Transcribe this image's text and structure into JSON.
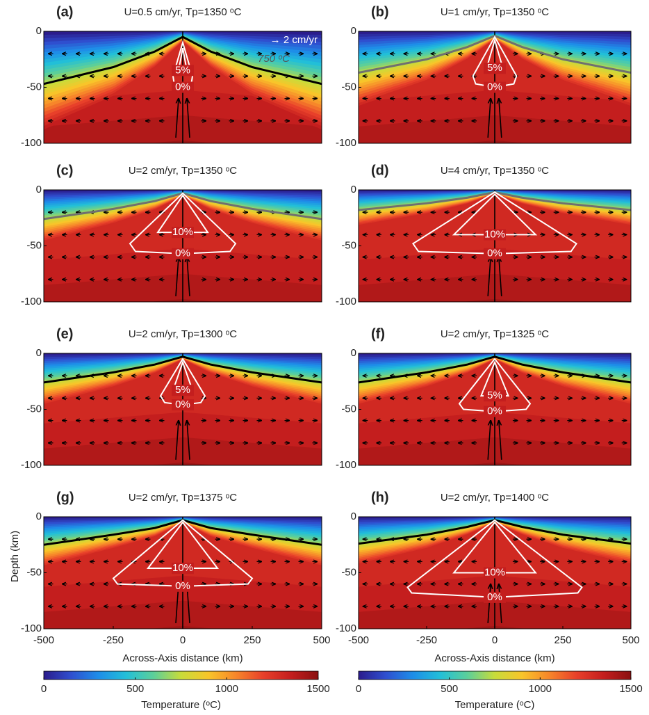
{
  "chart_data": [
    {
      "type": "field",
      "label": "(a)",
      "title": "U=0.5 cm/yr, Tp=1350 ᵒC",
      "xlim": [
        -500,
        500
      ],
      "ylim": [
        -100,
        0
      ],
      "yticks": [
        -100,
        -50,
        0
      ],
      "isotherm": {
        "label": "750 ᵒC",
        "color": "#000000",
        "x": [
          -500,
          -250,
          -100,
          0,
          100,
          250,
          500
        ],
        "y": [
          -47,
          -32,
          -18,
          -5,
          -18,
          -32,
          -47
        ]
      },
      "arrow_scale": "→ 2 cm/yr",
      "melt_contours": [
        {
          "label": "0%",
          "x": [
            0,
            -35,
            -30,
            0,
            30,
            35,
            0
          ],
          "y": [
            -10,
            -40,
            -48,
            -50,
            -48,
            -40,
            -10
          ]
        },
        {
          "label": "5%",
          "x": [
            0,
            -15,
            15,
            0
          ],
          "y": [
            -15,
            -35,
            -35,
            -15
          ]
        }
      ]
    },
    {
      "type": "field",
      "label": "(b)",
      "title": "U=1 cm/yr, Tp=1350 ᵒC",
      "xlim": [
        -500,
        500
      ],
      "ylim": [
        -100,
        0
      ],
      "yticks": [
        -100,
        -50,
        0
      ],
      "isotherm": {
        "color": "#707070",
        "x": [
          -500,
          -250,
          -100,
          0,
          100,
          250,
          500
        ],
        "y": [
          -37,
          -25,
          -14,
          -4,
          -14,
          -25,
          -37
        ]
      },
      "melt_contours": [
        {
          "label": "0%",
          "x": [
            0,
            -80,
            -70,
            0,
            70,
            80,
            0
          ],
          "y": [
            -5,
            -40,
            -47,
            -50,
            -47,
            -40,
            -5
          ]
        },
        {
          "label": "5%",
          "x": [
            0,
            -30,
            30,
            0
          ],
          "y": [
            -8,
            -33,
            -33,
            -8
          ]
        }
      ]
    },
    {
      "type": "field",
      "label": "(c)",
      "title": "U=2 cm/yr, Tp=1350 ᵒC",
      "xlim": [
        -500,
        500
      ],
      "ylim": [
        -100,
        0
      ],
      "yticks": [
        -100,
        -50,
        0
      ],
      "isotherm": {
        "color": "#707070",
        "x": [
          -500,
          -250,
          -100,
          0,
          100,
          250,
          500
        ],
        "y": [
          -26,
          -17,
          -10,
          -3,
          -10,
          -17,
          -26
        ]
      },
      "melt_contours": [
        {
          "label": "0%",
          "x": [
            0,
            -190,
            -170,
            0,
            170,
            190,
            0
          ],
          "y": [
            -3,
            -48,
            -55,
            -57,
            -55,
            -48,
            -3
          ]
        },
        {
          "label": "10%",
          "x": [
            0,
            -90,
            90,
            0
          ],
          "y": [
            -5,
            -38,
            -38,
            -5
          ]
        }
      ]
    },
    {
      "type": "field",
      "label": "(d)",
      "title": "U=4 cm/yr, Tp=1350 ᵒC",
      "xlim": [
        -500,
        500
      ],
      "ylim": [
        -100,
        0
      ],
      "yticks": [
        -100,
        -50,
        0
      ],
      "isotherm": {
        "color": "#707070",
        "x": [
          -500,
          -250,
          -100,
          0,
          100,
          250,
          500
        ],
        "y": [
          -18,
          -12,
          -7,
          -2,
          -7,
          -12,
          -18
        ]
      },
      "melt_contours": [
        {
          "label": "0%",
          "x": [
            0,
            -300,
            -280,
            0,
            280,
            300,
            0
          ],
          "y": [
            -2,
            -48,
            -55,
            -57,
            -55,
            -48,
            -2
          ]
        },
        {
          "label": "10%",
          "x": [
            0,
            -150,
            150,
            0
          ],
          "y": [
            -4,
            -40,
            -40,
            -4
          ]
        }
      ]
    },
    {
      "type": "field",
      "label": "(e)",
      "title": "U=2 cm/yr, Tp=1300 ᵒC",
      "xlim": [
        -500,
        500
      ],
      "ylim": [
        -100,
        0
      ],
      "yticks": [
        -100,
        -50,
        0
      ],
      "isotherm": {
        "color": "#000000",
        "x": [
          -500,
          -250,
          -100,
          0,
          100,
          250,
          500
        ],
        "y": [
          -26,
          -17,
          -10,
          -3,
          -10,
          -17,
          -26
        ]
      },
      "melt_contours": [
        {
          "label": "0%",
          "x": [
            0,
            -80,
            -65,
            0,
            65,
            80,
            0
          ],
          "y": [
            -5,
            -38,
            -44,
            -46,
            -44,
            -38,
            -5
          ]
        },
        {
          "label": "5%",
          "x": [
            0,
            -35,
            35,
            0
          ],
          "y": [
            -8,
            -33,
            -33,
            -8
          ]
        }
      ]
    },
    {
      "type": "field",
      "label": "(f)",
      "title": "U=2 cm/yr, Tp=1325 ᵒC",
      "xlim": [
        -500,
        500
      ],
      "ylim": [
        -100,
        0
      ],
      "yticks": [
        -100,
        -50,
        0
      ],
      "isotherm": {
        "color": "#000000",
        "x": [
          -500,
          -250,
          -100,
          0,
          100,
          250,
          500
        ],
        "y": [
          -26,
          -17,
          -10,
          -3,
          -10,
          -17,
          -26
        ]
      },
      "melt_contours": [
        {
          "label": "0%",
          "x": [
            0,
            -130,
            -115,
            0,
            115,
            130,
            0
          ],
          "y": [
            -5,
            -45,
            -50,
            -52,
            -50,
            -45,
            -5
          ]
        },
        {
          "label": "5%",
          "x": [
            0,
            -50,
            50,
            0
          ],
          "y": [
            -8,
            -38,
            -38,
            -8
          ]
        }
      ]
    },
    {
      "type": "field",
      "label": "(g)",
      "title": "U=2 cm/yr, Tp=1375 ᵒC",
      "xlim": [
        -500,
        500
      ],
      "ylim": [
        -100,
        0
      ],
      "yticks": [
        -100,
        -50,
        0
      ],
      "xticks": [
        -500,
        -250,
        0,
        250,
        500
      ],
      "xlabel": "Across-Axis distance (km)",
      "ylabel": "Depth (km)",
      "isotherm": {
        "color": "#000000",
        "x": [
          -500,
          -250,
          -100,
          0,
          100,
          250,
          500
        ],
        "y": [
          -25,
          -16,
          -10,
          -3,
          -10,
          -16,
          -25
        ]
      },
      "melt_contours": [
        {
          "label": "0%",
          "x": [
            0,
            -250,
            -235,
            0,
            235,
            250,
            0
          ],
          "y": [
            -3,
            -55,
            -60,
            -62,
            -60,
            -55,
            -3
          ]
        },
        {
          "label": "10%",
          "x": [
            0,
            -125,
            125,
            0
          ],
          "y": [
            -5,
            -46,
            -46,
            -5
          ]
        }
      ]
    },
    {
      "type": "field",
      "label": "(h)",
      "title": "U=2 cm/yr, Tp=1400 ᵒC",
      "xlim": [
        -500,
        500
      ],
      "ylim": [
        -100,
        0
      ],
      "yticks": [
        -100,
        -50,
        0
      ],
      "xticks": [
        -500,
        -250,
        0,
        250,
        500
      ],
      "xlabel": "Across-Axis distance (km)",
      "isotherm": {
        "color": "#000000",
        "x": [
          -500,
          -250,
          -100,
          0,
          100,
          250,
          500
        ],
        "y": [
          -24,
          -16,
          -9,
          -3,
          -9,
          -16,
          -24
        ]
      },
      "melt_contours": [
        {
          "label": "0%",
          "x": [
            0,
            -320,
            -305,
            0,
            305,
            320,
            0
          ],
          "y": [
            -3,
            -63,
            -68,
            -72,
            -68,
            -63,
            -3
          ]
        },
        {
          "label": "10%",
          "x": [
            0,
            -150,
            150,
            0
          ],
          "y": [
            -5,
            -50,
            -50,
            -5
          ]
        }
      ]
    },
    {
      "type": "colorbar",
      "xlim": [
        0,
        1500
      ],
      "xticks": [
        0,
        500,
        1000,
        1500
      ],
      "xlabel": "Temperature (ᵒC)",
      "colormap": [
        "#2b1c8c",
        "#2f4fcf",
        "#1e8ee8",
        "#22bfd8",
        "#5ccf9a",
        "#c8dc3a",
        "#f8c52a",
        "#f7862a",
        "#e8402a",
        "#c41e1e",
        "#8a1010"
      ]
    },
    {
      "type": "colorbar",
      "xlim": [
        0,
        1500
      ],
      "xticks": [
        0,
        500,
        1000,
        1500
      ],
      "xlabel": "Temperature (ᵒC)",
      "colormap": [
        "#2b1c8c",
        "#2f4fcf",
        "#1e8ee8",
        "#22bfd8",
        "#5ccf9a",
        "#c8dc3a",
        "#f8c52a",
        "#f7862a",
        "#e8402a",
        "#c41e1e",
        "#8a1010"
      ]
    }
  ]
}
